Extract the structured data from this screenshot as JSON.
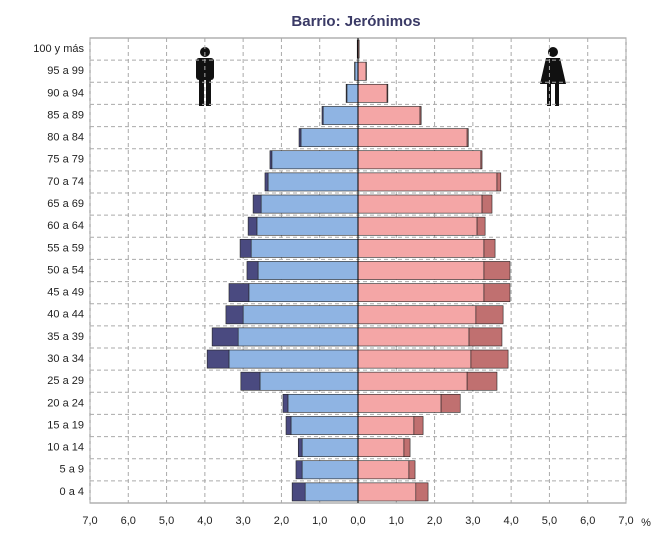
{
  "chart_data": {
    "type": "pyramid",
    "title": "Barrio: Jerónimos",
    "categories": [
      "100 y más",
      "95 a 99",
      "90 a 94",
      "85 a 89",
      "80 a 84",
      "75 a 79",
      "70 a 74",
      "65 a 69",
      "60 a 64",
      "55 a 59",
      "50 a 54",
      "45 a 49",
      "40 a 44",
      "35 a 39",
      "30 a 34",
      "25 a 29",
      "20 a 24",
      "15 a 19",
      "10 a 14",
      "5 a 9",
      "0 a 4"
    ],
    "series": [
      {
        "color": "#8fb4e3",
        "values": [
          -0.02,
          -0.08,
          -0.29,
          -0.91,
          -1.49,
          -2.25,
          -2.35,
          -2.53,
          -2.64,
          -2.79,
          -2.61,
          -2.85,
          -3.0,
          -3.13,
          -3.37,
          -2.56,
          -1.83,
          -1.75,
          -1.46,
          -1.46,
          -1.38
        ]
      },
      {
        "color": "#4a4a80",
        "values": [
          0,
          -0.01,
          -0.02,
          -0.03,
          -0.05,
          -0.05,
          -0.08,
          -0.21,
          -0.23,
          -0.29,
          -0.29,
          -0.52,
          -0.45,
          -0.68,
          -0.57,
          -0.5,
          -0.13,
          -0.13,
          -0.1,
          -0.16,
          -0.34
        ]
      },
      {
        "color": "#f4a6a6",
        "values": [
          0.03,
          0.21,
          0.76,
          1.62,
          2.85,
          3.21,
          3.63,
          3.24,
          3.11,
          3.29,
          3.29,
          3.29,
          3.08,
          2.9,
          2.95,
          2.85,
          2.17,
          1.46,
          1.2,
          1.33,
          1.51
        ]
      },
      {
        "color": "#c07070",
        "values": [
          0,
          0.01,
          0.02,
          0.03,
          0.03,
          0.03,
          0.1,
          0.26,
          0.21,
          0.29,
          0.68,
          0.68,
          0.71,
          0.86,
          0.97,
          0.78,
          0.5,
          0.24,
          0.16,
          0.16,
          0.32
        ]
      }
    ],
    "stack_groups": [
      [
        0,
        1
      ],
      [
        2,
        3
      ]
    ],
    "xlim": [
      -7,
      7
    ],
    "xticks": [
      {
        "value": -7,
        "label": "7,0"
      },
      {
        "value": -6,
        "label": "6,0"
      },
      {
        "value": -5,
        "label": "5,0"
      },
      {
        "value": -4,
        "label": "4,0"
      },
      {
        "value": -3,
        "label": "3,0"
      },
      {
        "value": -2,
        "label": "2,0"
      },
      {
        "value": -1,
        "label": "1,0"
      },
      {
        "value": 0,
        "label": "0,0"
      },
      {
        "value": 1,
        "label": "1,0"
      },
      {
        "value": 2,
        "label": "2,0"
      },
      {
        "value": 3,
        "label": "3,0"
      },
      {
        "value": 4,
        "label": "4,0"
      },
      {
        "value": 5,
        "label": "5,0"
      },
      {
        "value": 6,
        "label": "6,0"
      },
      {
        "value": 7,
        "label": "7,0"
      }
    ],
    "x_unit": "%",
    "grid": true
  }
}
